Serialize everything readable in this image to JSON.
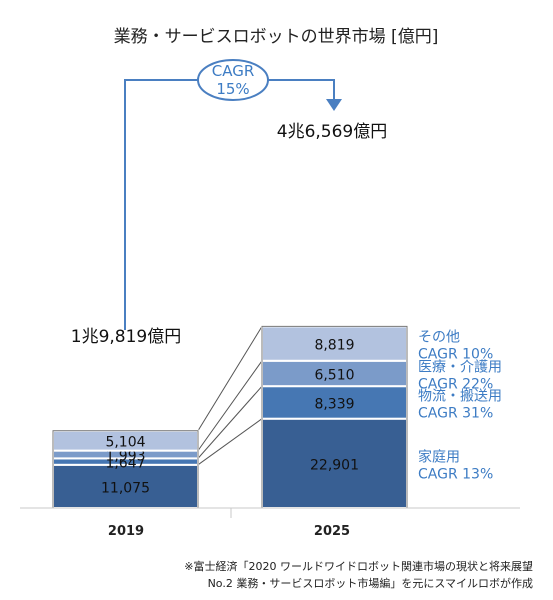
{
  "chart_data": {
    "type": "bar",
    "stacked": true,
    "title": "業務・サービスロボットの世界市場 [億円]",
    "categories": [
      "2019",
      "2025"
    ],
    "totals_labels": [
      "1兆9,819億円",
      "4兆6,569億円"
    ],
    "series": [
      {
        "name": "家庭用",
        "cagr": "CAGR 13%",
        "values": [
          11075,
          22901
        ],
        "labels": [
          "11,075",
          "22,901"
        ],
        "color": "#385f93"
      },
      {
        "name": "物流・搬送用",
        "cagr": "CAGR 31%",
        "values": [
          1647,
          8339
        ],
        "labels": [
          "1,647",
          "8,339"
        ],
        "color": "#4677b3"
      },
      {
        "name": "医療・介護用",
        "cagr": "CAGR 22%",
        "values": [
          1993,
          6510
        ],
        "labels": [
          "1,993",
          "6,510"
        ],
        "color": "#7b9bc9"
      },
      {
        "name": "その他",
        "cagr": "CAGR 10%",
        "values": [
          5104,
          8819
        ],
        "labels": [
          "5,104",
          "8,819"
        ],
        "color": "#b2c2df"
      }
    ],
    "cagr_callout": {
      "line1": "CAGR",
      "line2": "15%"
    },
    "legend_text_color": "#3d7cc4",
    "arrow_color": "#4a7fc1"
  },
  "footnote": {
    "line1": "※富士経済「2020 ワールドワイドロボット関連市場の現状と将来展望",
    "line2": "No.2 業務・サービスロボット市場編」を元にスマイルロボが作成"
  }
}
